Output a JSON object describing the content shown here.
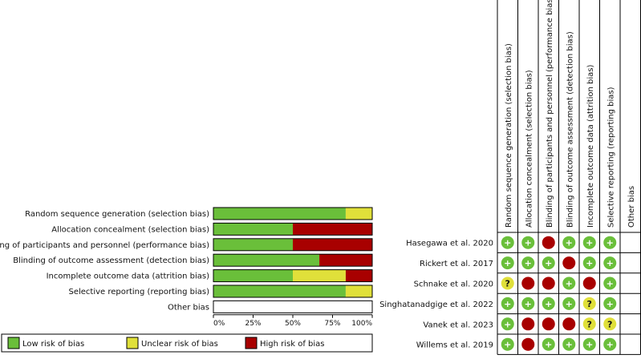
{
  "colors": {
    "low": "#6abf3a",
    "unclear": "#e0e03a",
    "high": "#a80000",
    "border": "#000000"
  },
  "chart_data": [
    {
      "type": "bar",
      "orientation": "horizontal",
      "stacked": true,
      "categories": [
        "Random sequence generation (selection bias)",
        "Allocation concealment (selection bias)",
        "Blinding of participants and personnel (performance bias)",
        "Blinding of outcome assessment (detection bias)",
        "Incomplete outcome data (attrition bias)",
        "Selective reporting (reporting bias)",
        "Other bias"
      ],
      "series": [
        {
          "name": "Low risk of bias",
          "color_key": "low",
          "values": [
            83.3,
            50,
            50,
            66.7,
            50,
            83.3,
            0
          ]
        },
        {
          "name": "Unclear risk of bias",
          "color_key": "unclear",
          "values": [
            16.7,
            0,
            0,
            0,
            33.3,
            16.7,
            0
          ]
        },
        {
          "name": "High risk of bias",
          "color_key": "high",
          "values": [
            0,
            50,
            50,
            33.3,
            16.7,
            0,
            0
          ]
        }
      ],
      "xticks": [
        "0%",
        "25%",
        "50%",
        "75%",
        "100%"
      ],
      "xlim": [
        0,
        100
      ],
      "legend_position": "bottom"
    },
    {
      "type": "table",
      "columns": [
        "Random sequence generation (selection bias)",
        "Allocation concealment (selection bias)",
        "Blinding of participants and personnel (performance bias)",
        "Blinding of outcome assessment (detection bias)",
        "Incomplete outcome data (attrition bias)",
        "Selective reporting (reporting bias)",
        "Other bias"
      ],
      "rows": [
        {
          "study": "Hasegawa et al. 2020",
          "ratings": [
            "low",
            "low",
            "high",
            "low",
            "low",
            "low",
            ""
          ]
        },
        {
          "study": "Rickert et al. 2017",
          "ratings": [
            "low",
            "low",
            "low",
            "high",
            "low",
            "low",
            ""
          ]
        },
        {
          "study": "Schnake et al. 2020",
          "ratings": [
            "unclear",
            "high",
            "high",
            "low",
            "high",
            "low",
            ""
          ]
        },
        {
          "study": "Singhatanadgige et al. 2022",
          "ratings": [
            "low",
            "low",
            "low",
            "low",
            "unclear",
            "low",
            ""
          ]
        },
        {
          "study": "Vanek et al. 2023",
          "ratings": [
            "low",
            "high",
            "high",
            "high",
            "unclear",
            "unclear",
            ""
          ]
        },
        {
          "study": "Willems et al. 2019",
          "ratings": [
            "low",
            "high",
            "low",
            "low",
            "low",
            "low",
            ""
          ]
        }
      ],
      "symbols": {
        "low": "+",
        "unclear": "?",
        "high": ""
      }
    }
  ]
}
